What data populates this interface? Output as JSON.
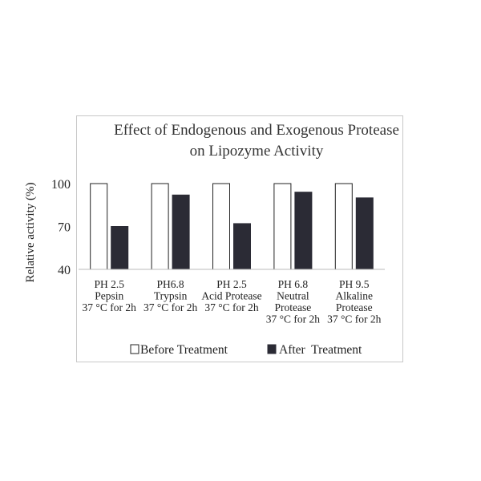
{
  "chart_data": {
    "type": "bar",
    "title": "Effect of Endogenous and Exogenous Protease on Lipozyme Activity",
    "title_lines": [
      "Effect of Endogenous and Exogenous Protease",
      "on Lipozyme Activity"
    ],
    "xlabel": "",
    "ylabel": "Relative activity (%)",
    "ylim": [
      40,
      100
    ],
    "yticks": [
      "40",
      "70",
      "100"
    ],
    "grid": false,
    "legend_position": "bottom",
    "categories": [
      [
        "PH 2.5",
        "Pepsin",
        "37 °C for 2h"
      ],
      [
        "PH6.8",
        "Trypsin",
        "37 °C for 2h"
      ],
      [
        "PH 2.5",
        "Acid Protease",
        "37 °C for 2h"
      ],
      [
        "PH 6.8",
        "Neutral",
        "Protease",
        "37 °C for 2h"
      ],
      [
        "PH 9.5",
        "Alkaline",
        "Protease",
        "37 °C for 2h"
      ]
    ],
    "series": [
      {
        "name": "Before Treatment",
        "color": "#ffffff",
        "stroke": "#222222",
        "values": [
          100,
          100,
          100,
          100,
          100
        ]
      },
      {
        "name": "After  Treatment",
        "color": "#2b2b35",
        "stroke": "#2b2b35",
        "values": [
          70,
          92,
          72,
          94,
          90
        ]
      }
    ]
  }
}
